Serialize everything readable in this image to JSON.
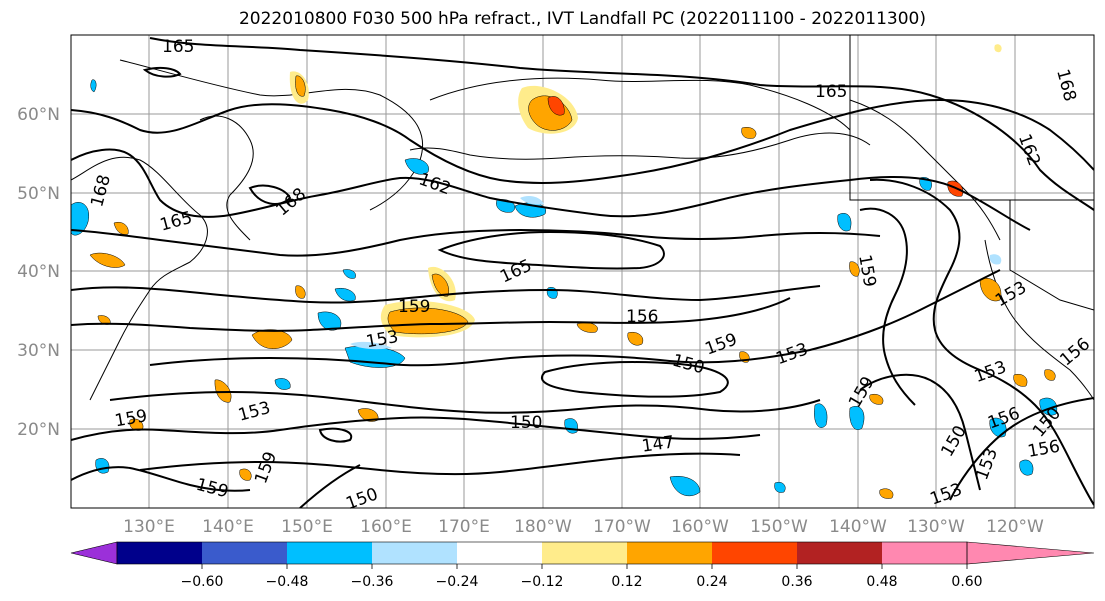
{
  "title": "2022010800 F030 500 hPa refract., IVT Landfall PC (2022011100 - 2022011300)",
  "latitude_labels": [
    "60°N",
    "50°N",
    "40°N",
    "30°N",
    "20°N"
  ],
  "longitude_labels": [
    "130°E",
    "140°E",
    "150°E",
    "160°E",
    "170°E",
    "180°W",
    "170°W",
    "160°W",
    "150°W",
    "140°W",
    "130°W",
    "120°W"
  ],
  "contour_labels": [
    "165",
    "165",
    "168",
    "168",
    "162",
    "165",
    "162",
    "168",
    "159",
    "153",
    "156",
    "159",
    "150",
    "153",
    "165",
    "159",
    "153",
    "159",
    "153",
    "150",
    "147",
    "159",
    "150",
    "159",
    "150",
    "156",
    "159",
    "156",
    "153",
    "150",
    "156",
    "153",
    "153"
  ],
  "colorbar": {
    "ticks": [
      "−0.60",
      "−0.48",
      "−0.36",
      "−0.24",
      "−0.12",
      "0.12",
      "0.24",
      "0.36",
      "0.48",
      "0.60"
    ],
    "colors": [
      "#9b30d9",
      "#00008b",
      "#3a5bcc",
      "#00bfff",
      "#b0e2ff",
      "#ffffff",
      "#ffec8b",
      "#ffa500",
      "#ff4500",
      "#b22222",
      "#ff88b0"
    ]
  }
}
